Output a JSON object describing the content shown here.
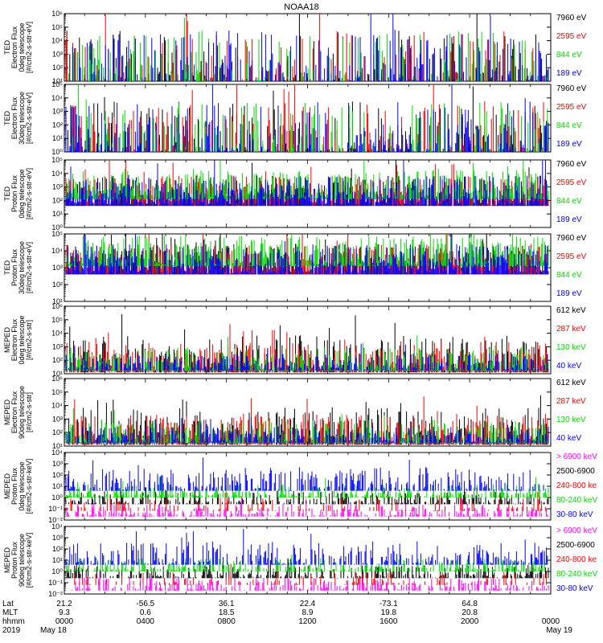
{
  "title": "NOAA18",
  "colors": {
    "black": "#000000",
    "red": "#ff0000",
    "green": "#00dd00",
    "blue": "#0000ff",
    "magenta": "#ff00ff"
  },
  "chart_data": [
    {
      "type": "line",
      "ylabel": [
        "TED",
        "Electron Flux",
        "0deg telescope",
        "[#/cm2-s-str-eV]"
      ],
      "log_y": true,
      "ylim_exp": [
        1,
        6
      ],
      "series": [
        {
          "name": "7960 eV",
          "color": "black"
        },
        {
          "name": "2595 eV",
          "color": "red"
        },
        {
          "name": "844 eV",
          "color": "green"
        },
        {
          "name": "189 eV",
          "color": "blue"
        }
      ]
    },
    {
      "type": "line",
      "ylabel": [
        "TED",
        "Electron Flux",
        "30deg telescope",
        "[#/cm2-s-str-eV]"
      ],
      "log_y": true,
      "ylim_exp": [
        0,
        5
      ],
      "series": [
        {
          "name": "7960 eV",
          "color": "black"
        },
        {
          "name": "2595 eV",
          "color": "red"
        },
        {
          "name": "844 eV",
          "color": "green"
        },
        {
          "name": "189 eV",
          "color": "blue"
        }
      ]
    },
    {
      "type": "line",
      "ylabel": [
        "TED",
        "Proton Flux",
        "0deg telescope",
        "[#/cm2-s-str-eV]"
      ],
      "log_y": true,
      "ylim_exp": [
        0,
        5
      ],
      "series": [
        {
          "name": "7960 eV",
          "color": "black"
        },
        {
          "name": "2595 eV",
          "color": "red"
        },
        {
          "name": "844 eV",
          "color": "green"
        },
        {
          "name": "189 eV",
          "color": "blue"
        }
      ]
    },
    {
      "type": "line",
      "ylabel": [
        "TED",
        "Proton Flux",
        "30deg telescope",
        "[#/cm2-s-str-eV]"
      ],
      "log_y": true,
      "ylim_exp": [
        1,
        5
      ],
      "series": [
        {
          "name": "7960 eV",
          "color": "black"
        },
        {
          "name": "2595 eV",
          "color": "red"
        },
        {
          "name": "844 eV",
          "color": "green"
        },
        {
          "name": "189 eV",
          "color": "blue"
        }
      ]
    },
    {
      "type": "line",
      "ylabel": [
        "MEPED",
        "Electron Flux",
        "0deg telescope",
        "[#/cm2-s-str]"
      ],
      "log_y": true,
      "ylim_exp": [
        1,
        6
      ],
      "series": [
        {
          "name": "612 keV",
          "color": "black"
        },
        {
          "name": "287 keV",
          "color": "red"
        },
        {
          "name": "130 keV",
          "color": "green"
        },
        {
          "name": "40 keV",
          "color": "blue"
        }
      ]
    },
    {
      "type": "line",
      "ylabel": [
        "MEPED",
        "Electron Flux",
        "90deg telescope",
        "[#/cm2-s-str]"
      ],
      "log_y": true,
      "ylim_exp": [
        1,
        6
      ],
      "series": [
        {
          "name": "612 keV",
          "color": "black"
        },
        {
          "name": "287 keV",
          "color": "red"
        },
        {
          "name": "130 keV",
          "color": "green"
        },
        {
          "name": "40 keV",
          "color": "blue"
        }
      ]
    },
    {
      "type": "line",
      "ylabel": [
        "MEPED",
        "Proton Flux",
        "0deg telescope",
        "[#/cm2-s-str-keV]"
      ],
      "log_y": true,
      "ylim_exp": [
        -2,
        4
      ],
      "series": [
        {
          "name": "> 6900 keV",
          "color": "magenta"
        },
        {
          "name": "2500-6900",
          "color": "black"
        },
        {
          "name": "240-800 ke",
          "color": "red"
        },
        {
          "name": "80-240 keV",
          "color": "green"
        },
        {
          "name": "30-80 keV",
          "color": "blue"
        }
      ]
    },
    {
      "type": "line",
      "ylabel": [
        "MEPED",
        "Proton Flux",
        "90deg telescope",
        "[#/cm2-s-str-keV]"
      ],
      "log_y": true,
      "ylim_exp": [
        -2,
        4
      ],
      "series": [
        {
          "name": "> 6900 keV",
          "color": "magenta"
        },
        {
          "name": "2500-6900",
          "color": "black"
        },
        {
          "name": "240-800 ke",
          "color": "red"
        },
        {
          "name": "80-240 keV",
          "color": "green"
        },
        {
          "name": "30-80 keV",
          "color": "blue"
        }
      ]
    }
  ],
  "x_axis": {
    "row_labels": [
      "Lat",
      "MLT",
      "hhmm",
      "2019"
    ],
    "ticks": [
      {
        "lat": "21.2",
        "mlt": "9.3",
        "hhmm": "0000",
        "date": "May 18"
      },
      {
        "lat": "-56.5",
        "mlt": "0.6",
        "hhmm": "0400",
        "date": ""
      },
      {
        "lat": "36.1",
        "mlt": "18.5",
        "hhmm": "0800",
        "date": ""
      },
      {
        "lat": "22.4",
        "mlt": "8.9",
        "hhmm": "1200",
        "date": ""
      },
      {
        "lat": "-73.1",
        "mlt": "19.8",
        "hhmm": "1600",
        "date": ""
      },
      {
        "lat": "64.8",
        "mlt": "20.8",
        "hhmm": "2000",
        "date": ""
      },
      {
        "lat": "",
        "mlt": "",
        "hhmm": "0000",
        "date": "May 19"
      }
    ]
  }
}
